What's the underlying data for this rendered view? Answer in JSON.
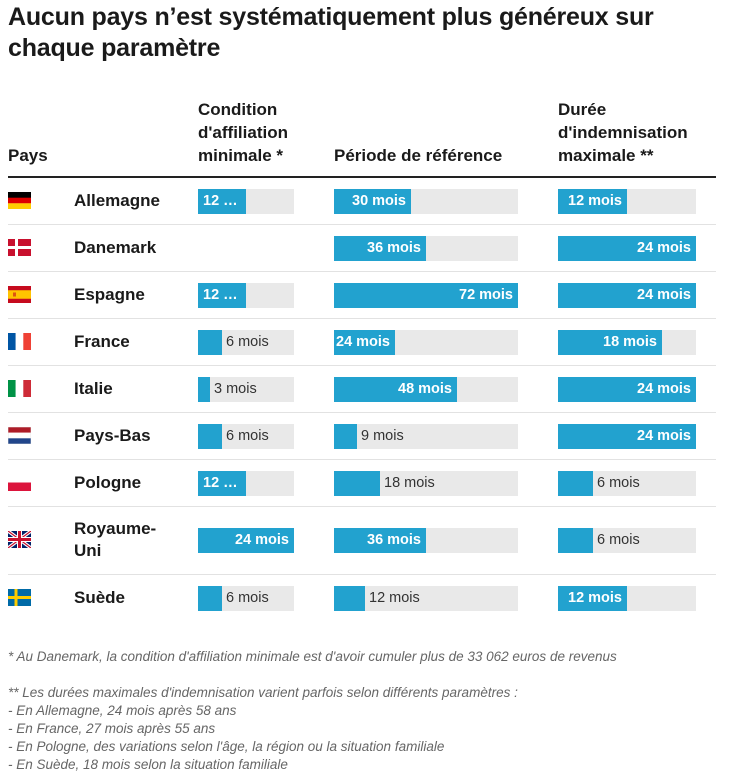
{
  "title": "Aucun pays n’est systématiquement plus généreux sur chaque paramètre",
  "headers": {
    "country": "Pays",
    "affiliation": [
      "Condition",
      "d'affiliation",
      "minimale *"
    ],
    "reference": [
      "Période de référence"
    ],
    "duration": [
      "Durée",
      "d'indemnisation",
      "maximale **"
    ]
  },
  "colors": {
    "bar": "#22a2cf",
    "track": "#e9e9e9"
  },
  "chart_data": {
    "type": "bar",
    "orientation": "horizontal",
    "unit": "mois",
    "categories": [
      "Allemagne",
      "Danemark",
      "Espagne",
      "France",
      "Italie",
      "Pays-Bas",
      "Pologne",
      "Royaume-Uni",
      "Suède"
    ],
    "flags": [
      "de-flag",
      "dk-flag",
      "es-flag",
      "fr-flag",
      "it-flag",
      "nl-flag",
      "pl-flag",
      "uk-flag",
      "se-flag"
    ],
    "series": [
      {
        "name": "Condition d'affiliation minimale *",
        "max": 24,
        "values": [
          12,
          null,
          12,
          6,
          3,
          6,
          12,
          24,
          6
        ],
        "labels": [
          "12 …",
          "",
          "12 …",
          "6 mois",
          "3 mois",
          "6 mois",
          "12 …",
          "24 mois",
          "6 mois"
        ]
      },
      {
        "name": "Période de référence",
        "max": 72,
        "values": [
          30,
          36,
          72,
          24,
          48,
          9,
          18,
          36,
          12
        ],
        "labels": [
          "30 mois",
          "36 mois",
          "72 mois",
          "24 mois",
          "48 mois",
          "9 mois",
          "18 mois",
          "36 mois",
          "12 mois"
        ]
      },
      {
        "name": "Durée d'indemnisation maximale **",
        "max": 24,
        "values": [
          12,
          24,
          24,
          18,
          24,
          24,
          6,
          6,
          12
        ],
        "labels": [
          "12 mois",
          "24 mois",
          "24 mois",
          "18 mois",
          "24 mois",
          "24 mois",
          "6 mois",
          "6 mois",
          "12 mois"
        ]
      }
    ]
  },
  "notes": [
    "* Au Danemark, la condition d'affiliation minimale est d'avoir cumuler plus de 33 062 euros de revenus",
    "** Les durées maximales d'indemnisation varient parfois selon différents paramètres :",
    "- En Allemagne, 24 mois après 58 ans",
    "- En France, 27 mois après 55 ans",
    "- En Pologne, des variations selon l'âge, la région ou la situation familiale",
    "- En Suède, 18 mois selon la situation familiale"
  ]
}
